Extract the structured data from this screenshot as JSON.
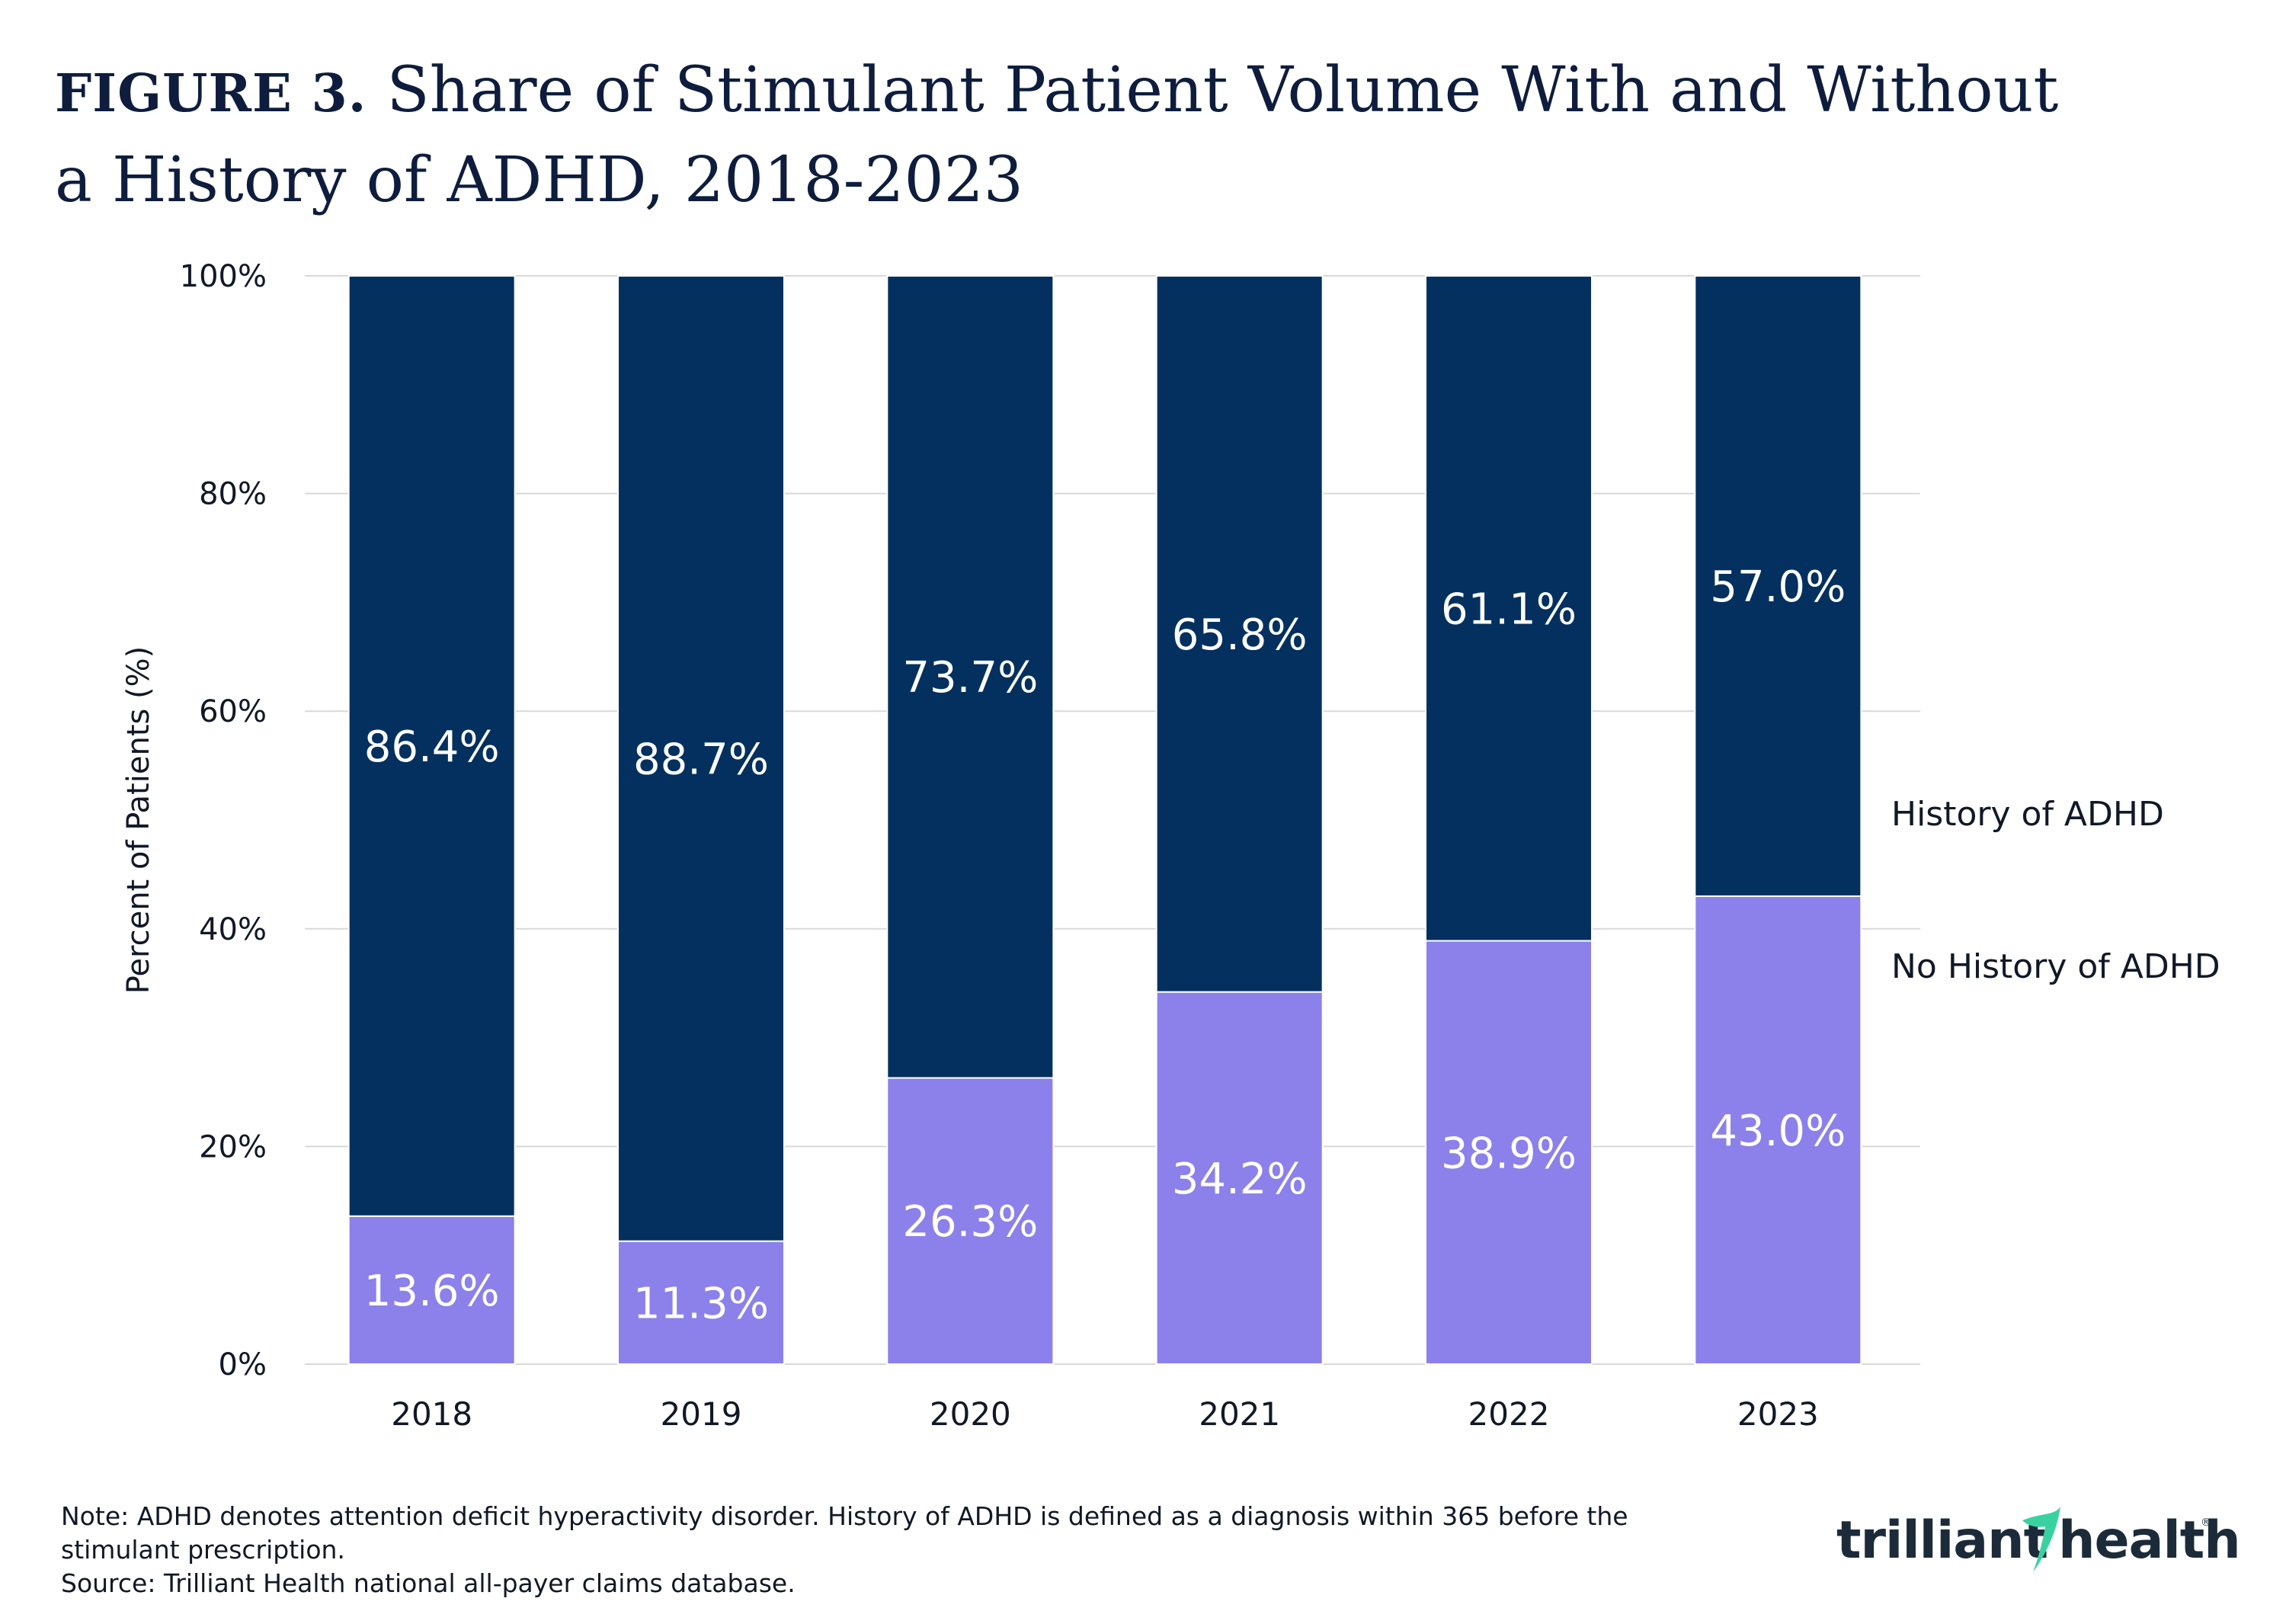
{
  "title": {
    "figure_label": "FIGURE 3.",
    "text": "Share of Stimulant Patient Volume With and Without a History of ADHD, 2018-2023"
  },
  "chart_data": {
    "type": "bar",
    "stacked": true,
    "categories": [
      "2018",
      "2019",
      "2020",
      "2021",
      "2022",
      "2023"
    ],
    "series": [
      {
        "name": "No History of ADHD",
        "color": "#8c80eb",
        "values": [
          13.6,
          11.3,
          26.3,
          34.2,
          38.9,
          43.0
        ],
        "labels": [
          "13.6%",
          "11.3%",
          "26.3%",
          "34.2%",
          "38.9%",
          "43.0%"
        ]
      },
      {
        "name": "History of ADHD",
        "color": "#03305f",
        "values": [
          86.4,
          88.7,
          73.7,
          65.8,
          61.1,
          57.0
        ],
        "labels": [
          "86.4%",
          "88.7%",
          "73.7%",
          "65.8%",
          "61.1%",
          "57.0%"
        ]
      }
    ],
    "ylabel": "Percent of Patients (%)",
    "ylim": [
      0,
      100
    ],
    "yticks": [
      0,
      20,
      40,
      60,
      80,
      100
    ],
    "ytick_labels": [
      "0%",
      "20%",
      "40%",
      "60%",
      "80%",
      "100%"
    ],
    "grid": true,
    "legend_placement": "right, inline with last bar",
    "legend": [
      "History of ADHD",
      "No History of ADHD"
    ]
  },
  "footer": {
    "note": "Note: ADHD denotes attention deficit hyperactivity disorder. History of ADHD is defined as a diagnosis within 365 before the stimulant prescription.",
    "source": "Source: Trilliant Health national all-payer claims database."
  },
  "brand": {
    "name": "trilliant health",
    "text_left": "trilliant",
    "text_right": "health",
    "accent_color": "#3ad1a0"
  }
}
